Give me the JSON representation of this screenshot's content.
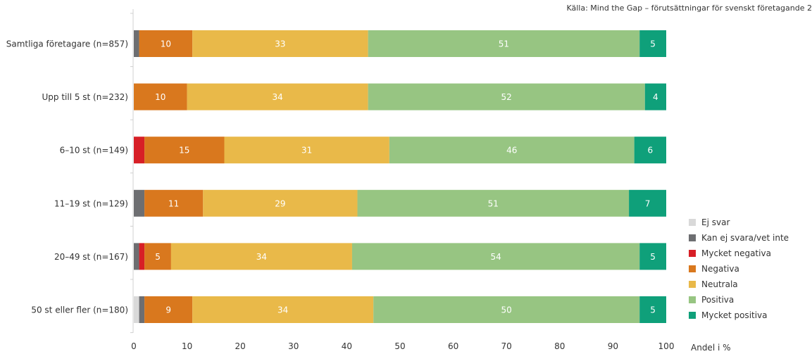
{
  "source": "Källa: Mind the Gap – förutsättningar för svenskt företagande 2",
  "unit_label": "Andel i %",
  "colors": {
    "Ej svar": "#d9d9d9",
    "Kan ej svara/vet inte": "#6d6e71",
    "Mycket negativa": "#d71f26",
    "Negativa": "#d9781e",
    "Neutrala": "#e9b949",
    "Positiva": "#97c582",
    "Mycket positiva": "#0fa07a"
  },
  "chart_data": {
    "type": "bar",
    "orientation": "horizontal",
    "stacked": true,
    "categories": [
      "Samtliga företagare (n=857)",
      "Upp till 5 st (n=232)",
      "6–10 st (n=149)",
      "11–19 st (n=129)",
      "20–49 st (n=167)",
      "50 st eller fler (n=180)"
    ],
    "series": [
      {
        "name": "Ej svar",
        "values": [
          0,
          0,
          0,
          0,
          0,
          1
        ],
        "labels": [
          "",
          "",
          "",
          "",
          "",
          ""
        ]
      },
      {
        "name": "Kan ej svara/vet inte",
        "values": [
          1,
          0,
          0,
          2,
          1,
          1
        ],
        "labels": [
          "",
          "",
          "",
          "",
          "",
          ""
        ]
      },
      {
        "name": "Mycket negativa",
        "values": [
          0,
          0,
          2,
          0,
          1,
          0
        ],
        "labels": [
          "",
          "",
          "",
          "",
          "",
          ""
        ]
      },
      {
        "name": "Negativa",
        "values": [
          10,
          10,
          15,
          11,
          5,
          9
        ],
        "labels": [
          "10",
          "10",
          "15",
          "11",
          "5",
          "9"
        ]
      },
      {
        "name": "Neutrala",
        "values": [
          33,
          34,
          31,
          29,
          34,
          34
        ],
        "labels": [
          "33",
          "34",
          "31",
          "29",
          "34",
          "34"
        ]
      },
      {
        "name": "Positiva",
        "values": [
          51,
          52,
          46,
          51,
          54,
          50
        ],
        "labels": [
          "51",
          "52",
          "46",
          "51",
          "54",
          "50"
        ]
      },
      {
        "name": "Mycket positiva",
        "values": [
          5,
          4,
          6,
          7,
          5,
          5
        ],
        "labels": [
          "5",
          "4",
          "6",
          "7",
          "5",
          "5"
        ]
      }
    ],
    "xlim": [
      0,
      100
    ],
    "xticks": [
      "0",
      "10",
      "20",
      "30",
      "40",
      "50",
      "60",
      "70",
      "80",
      "90",
      "100"
    ],
    "xlabel": "Andel i %",
    "legend": "right"
  }
}
